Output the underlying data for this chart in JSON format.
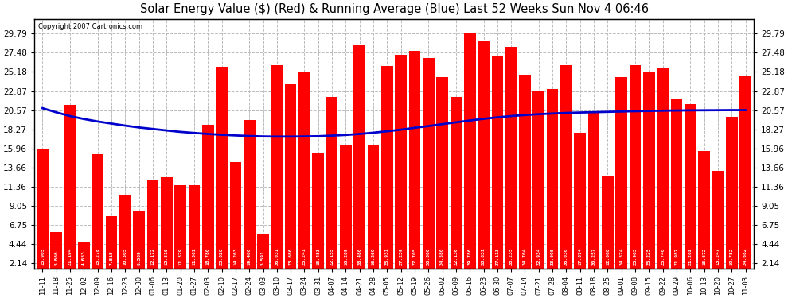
{
  "title": "Solar Energy Value ($) (Red) & Running Average (Blue) Last 52 Weeks Sun Nov 4 06:46",
  "copyright": "Copyright 2007 Cartronics.com",
  "bar_color": "#ff0000",
  "line_color": "#0000cc",
  "background_color": "#ffffff",
  "grid_color": "#bbbbbb",
  "yticks": [
    2.14,
    4.44,
    6.75,
    9.05,
    11.36,
    13.66,
    15.96,
    18.27,
    20.57,
    22.87,
    25.18,
    27.48,
    29.79
  ],
  "ylim": [
    1.5,
    31.5
  ],
  "categories": [
    "11-11",
    "11-18",
    "11-25",
    "12-02",
    "12-09",
    "12-16",
    "12-23",
    "12-30",
    "01-06",
    "01-13",
    "01-20",
    "01-27",
    "02-03",
    "02-10",
    "02-17",
    "02-24",
    "03-03",
    "03-10",
    "03-17",
    "03-24",
    "03-31",
    "04-07",
    "04-14",
    "04-21",
    "04-28",
    "05-05",
    "05-12",
    "05-19",
    "05-26",
    "06-02",
    "06-09",
    "06-16",
    "06-23",
    "06-30",
    "07-07",
    "07-14",
    "07-21",
    "07-28",
    "08-04",
    "08-11",
    "08-18",
    "08-25",
    "09-01",
    "09-08",
    "09-15",
    "09-22",
    "09-29",
    "10-06",
    "10-13",
    "10-20",
    "10-27",
    "11-03"
  ],
  "values": [
    15.905,
    5.866,
    21.194,
    4.653,
    15.278,
    7.815,
    10.305,
    8.389,
    12.172,
    12.51,
    11.529,
    11.561,
    18.78,
    25.828,
    14.263,
    19.4,
    5.591,
    26.031,
    23.686,
    25.241,
    15.483,
    22.155,
    16.289,
    28.48,
    16.269,
    25.931,
    27.259,
    27.705,
    26.86,
    24.58,
    22.136,
    29.786,
    28.831,
    27.113,
    28.235,
    24.764,
    22.934,
    23.095,
    26.03,
    17.874,
    20.257,
    12.668,
    24.574,
    25.963,
    25.225,
    25.74,
    21.987,
    21.262,
    15.672,
    13.247,
    19.782,
    24.682
  ],
  "running_avg": [
    20.8,
    20.3,
    19.85,
    19.5,
    19.2,
    18.95,
    18.7,
    18.48,
    18.3,
    18.12,
    17.95,
    17.82,
    17.7,
    17.6,
    17.52,
    17.45,
    17.4,
    17.38,
    17.38,
    17.4,
    17.43,
    17.5,
    17.58,
    17.7,
    17.85,
    18.02,
    18.22,
    18.44,
    18.65,
    18.88,
    19.1,
    19.32,
    19.52,
    19.7,
    19.85,
    19.98,
    20.08,
    20.16,
    20.23,
    20.28,
    20.32,
    20.36,
    20.4,
    20.44,
    20.47,
    20.5,
    20.52,
    20.54,
    20.55,
    20.56,
    20.57,
    20.57
  ],
  "value_labels": [
    "15.905",
    "5.866",
    "21.194",
    "4.653",
    "15.278",
    "7.815",
    "10.305",
    "8.389",
    "12.172",
    "12.510",
    "11.529",
    "11.561",
    "18.780",
    "25.828",
    "14.263",
    "19.400",
    "5.591",
    "26.031",
    "23.686",
    "25.241",
    "15.483",
    "22.155",
    "16.289",
    "28.480",
    "16.269",
    "25.931",
    "27.259",
    "27.705",
    "26.860",
    "24.580",
    "22.136",
    "29.786",
    "28.831",
    "27.113",
    "28.235",
    "24.764",
    "22.934",
    "23.095",
    "26.030",
    "17.874",
    "20.257",
    "12.668",
    "24.574",
    "25.963",
    "25.225",
    "25.740",
    "21.987",
    "21.262",
    "15.672",
    "13.247",
    "19.782",
    "24.682"
  ]
}
